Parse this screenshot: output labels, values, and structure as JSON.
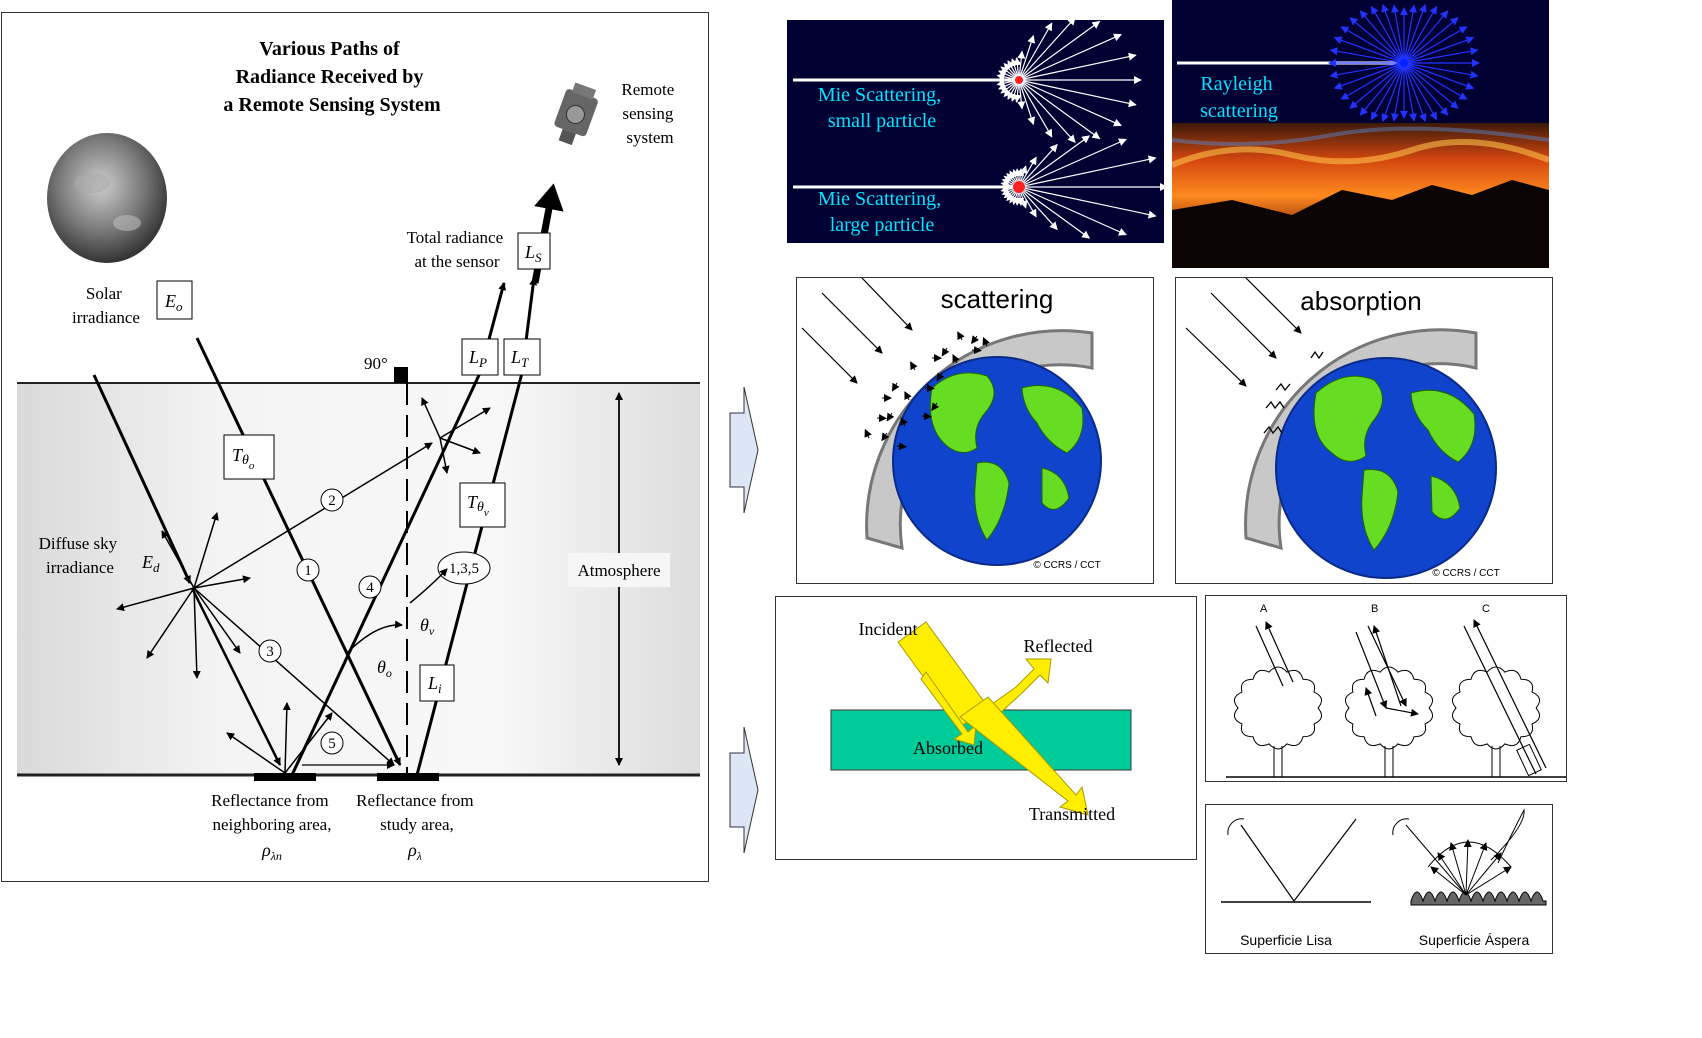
{
  "radiance_panel": {
    "title_lines": [
      "Various Paths of",
      "Radiance Received by",
      "a Remote Sensing System"
    ],
    "remote_system": [
      "Remote",
      "sensing",
      "system"
    ],
    "solar": [
      "Solar",
      "irradiance"
    ],
    "total_radiance": [
      "Total radiance",
      "at the sensor"
    ],
    "diffuse": [
      "Diffuse sky",
      "irradiance"
    ],
    "atmosphere": "Atmosphere",
    "right_angle": "90°",
    "refl_neighbor": [
      "Reflectance from",
      "neighboring area,"
    ],
    "refl_study": [
      "Reflectance from",
      "study area,"
    ],
    "path_numbers": [
      "1",
      "2",
      "3",
      "4",
      "5"
    ],
    "path_combo": "1,3,5"
  },
  "mie_panel": {
    "small": [
      "Mie Scattering,",
      "small particle"
    ],
    "large": [
      "Mie Scattering,",
      "large particle"
    ]
  },
  "rayleigh_panel": {
    "label": [
      "Rayleigh",
      "scattering"
    ]
  },
  "scattering_panel": {
    "title": "scattering",
    "credit": "© CCRS / CCT"
  },
  "absorption_panel": {
    "title": "absorption",
    "credit": "© CCRS / CCT"
  },
  "interaction_panel": {
    "incident": "Incident",
    "reflected": "Reflected",
    "absorbed": "Absorbed",
    "transmitted": "Transmitted"
  },
  "trees_panel": {
    "labels": [
      "A",
      "B",
      "C"
    ]
  },
  "surfaces_panel": {
    "smooth": "Superficie Lisa",
    "rough": "Superficie Áspera"
  },
  "colors": {
    "mie_bg": "#000033",
    "cyan_text": "#00e5ff",
    "teal_slab": "#00cc99",
    "yellow_beam": "#ffee00",
    "land": "#66dd22",
    "ocean": "#1144cc"
  }
}
